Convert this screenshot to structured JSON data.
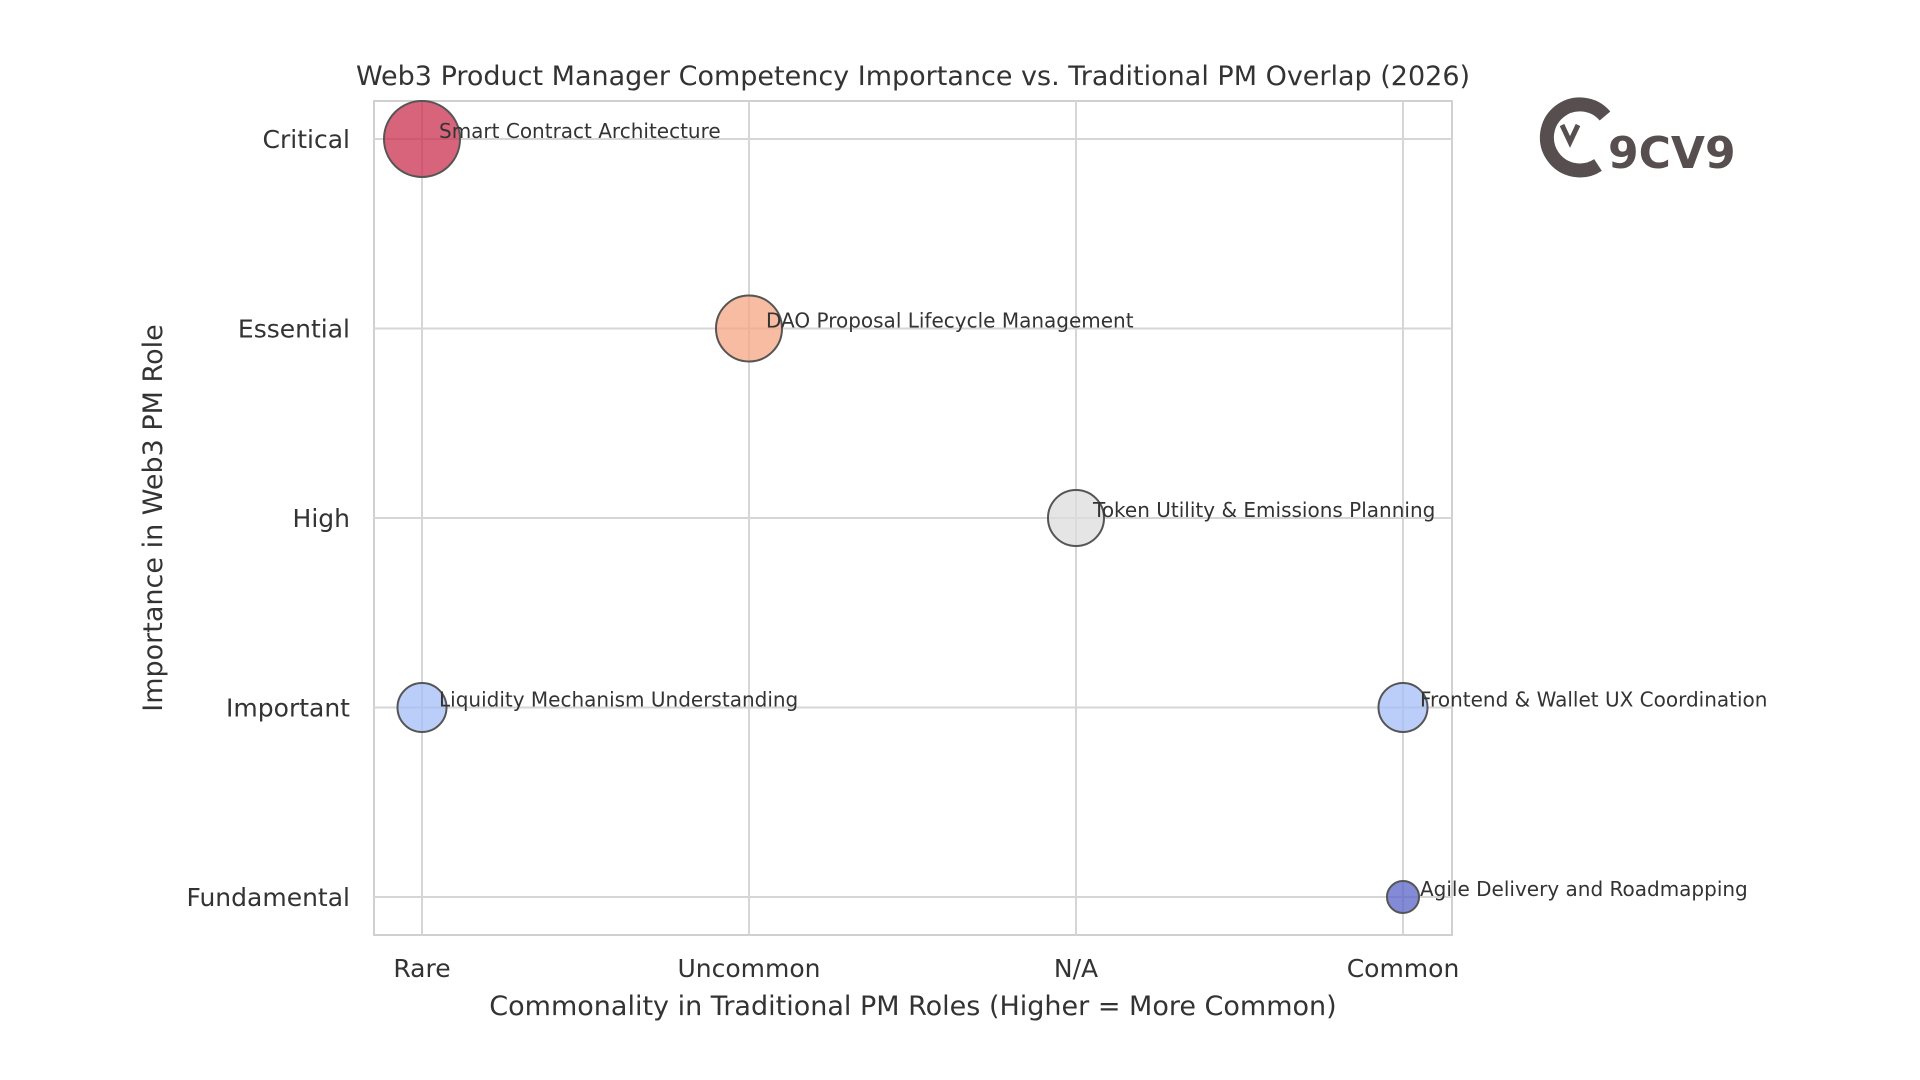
{
  "chart_data": {
    "type": "scatter",
    "title": "Web3 Product Manager Competency Importance vs. Traditional PM Overlap (2026)",
    "xlabel": "Commonality in Traditional PM Roles (Higher = More Common)",
    "ylabel": "Importance in Web3 PM Role",
    "x_ticks": [
      "Rare",
      "Uncommon",
      "N/A",
      "Common"
    ],
    "y_ticks": [
      "Fundamental",
      "Important",
      "High",
      "Essential",
      "Critical"
    ],
    "grid": true,
    "points": [
      {
        "label": "Smart Contract Architecture",
        "x": "Rare",
        "y": "Critical",
        "color": "#c9304e"
      },
      {
        "label": "DAO Proposal Lifecycle Management",
        "x": "Uncommon",
        "y": "Essential",
        "color": "#f4a582"
      },
      {
        "label": "Token Utility & Emissions Planning",
        "x": "N/A",
        "y": "High",
        "color": "#dcdcdc"
      },
      {
        "label": "Liquidity Mechanism Understanding",
        "x": "Rare",
        "y": "Important",
        "color": "#a3bdf7"
      },
      {
        "label": "Frontend & Wallet UX Coordination",
        "x": "Common",
        "y": "Important",
        "color": "#a3bdf7"
      },
      {
        "label": "Agile Delivery and Roadmapping",
        "x": "Common",
        "y": "Fundamental",
        "color": "#5a64c8"
      }
    ]
  },
  "logo": {
    "text": "9CV9"
  }
}
